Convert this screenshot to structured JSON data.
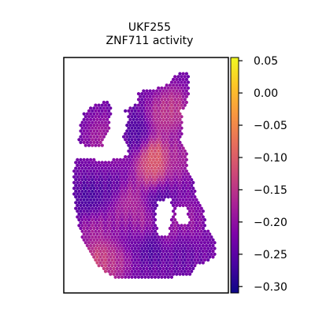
{
  "chart_data": {
    "type": "heatmap",
    "title": "UKF255",
    "subtitle": "ZNF711 activity",
    "xlabel": "",
    "ylabel": "",
    "grid": false,
    "colormap": "plasma",
    "colorbar": {
      "vmin": -0.31,
      "vmax": 0.055,
      "ticks": [
        0.05,
        0.0,
        -0.05,
        -0.1,
        -0.15,
        -0.2,
        -0.25,
        -0.3
      ],
      "tick_labels": [
        "0.05",
        "0.00",
        "−0.05",
        "−0.10",
        "−0.15",
        "−0.20",
        "−0.25",
        "−0.30"
      ]
    },
    "hotspots": [
      {
        "x": 0.12,
        "y": 0.62,
        "value": -0.28
      },
      {
        "x": 0.28,
        "y": 0.55,
        "value": -0.26
      },
      {
        "x": 0.45,
        "y": 0.3,
        "value": -0.27
      },
      {
        "x": 0.4,
        "y": 0.78,
        "value": -0.25
      },
      {
        "x": 0.6,
        "y": 0.65,
        "value": -0.27
      },
      {
        "x": 0.75,
        "y": 0.85,
        "value": -0.25
      },
      {
        "x": 0.55,
        "y": 0.82,
        "value": -0.28
      },
      {
        "x": 0.2,
        "y": 0.32,
        "value": -0.17
      },
      {
        "x": 0.22,
        "y": 0.95,
        "value": -0.14
      },
      {
        "x": 0.18,
        "y": 0.9,
        "value": -0.1
      },
      {
        "x": 0.3,
        "y": 0.9,
        "value": -0.15
      },
      {
        "x": 0.57,
        "y": 0.42,
        "value": -0.05
      },
      {
        "x": 0.53,
        "y": 0.46,
        "value": -0.12
      },
      {
        "x": 0.48,
        "y": 0.72,
        "value": -0.15
      },
      {
        "x": 0.38,
        "y": 0.62,
        "value": -0.15
      },
      {
        "x": 0.62,
        "y": 0.22,
        "value": -0.14
      },
      {
        "x": 0.7,
        "y": 0.18,
        "value": -0.13
      },
      {
        "x": 0.15,
        "y": 0.75,
        "value": -0.17
      },
      {
        "x": 0.72,
        "y": 0.42,
        "value": -0.16
      },
      {
        "x": 0.65,
        "y": 0.75,
        "value": -0.17
      },
      {
        "x": 0.35,
        "y": 0.72,
        "value": -0.18
      },
      {
        "x": 0.8,
        "y": 0.72,
        "value": -0.19
      },
      {
        "x": 0.3,
        "y": 0.42,
        "value": -0.2
      }
    ],
    "base_value": -0.23
  }
}
